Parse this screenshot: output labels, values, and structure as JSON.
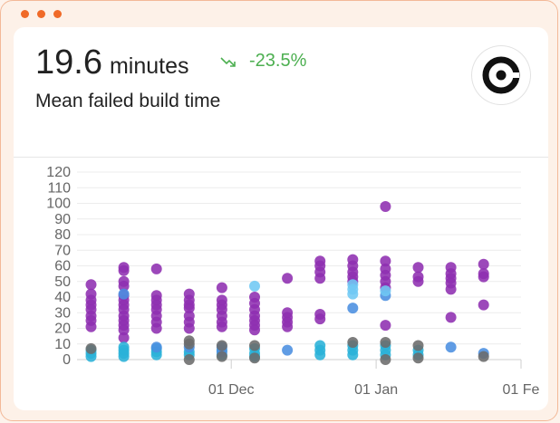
{
  "metric": {
    "value": "19.6",
    "unit": "minutes",
    "change": "-23.5%",
    "label": "Mean failed build time"
  },
  "icons": {
    "trend": "trend-down-icon",
    "logo": "circleci-logo"
  },
  "colors": {
    "accent": "#f06a28",
    "positive": "#4caf50",
    "purple": "#8e2fb0",
    "teal": "#2ab2d8",
    "blue": "#4a8ee0",
    "light_blue": "#6fc8f4",
    "gray": "#6b6b6b"
  },
  "chart_data": {
    "type": "scatter",
    "title": "",
    "xlabel": "",
    "ylabel": "",
    "y_ticks": [
      0,
      10,
      20,
      30,
      40,
      50,
      60,
      70,
      80,
      90,
      100,
      110,
      120
    ],
    "ylim": [
      0,
      120
    ],
    "x_ticks": [
      "01 Dec",
      "01 Jan",
      "01 Fe"
    ],
    "xlim": [
      "2023-10-29",
      "2024-02-01"
    ],
    "grid": true,
    "series": [
      {
        "color": "#8e2fb0",
        "points": [
          [
            "2023-11-01",
            48
          ],
          [
            "2023-11-01",
            42
          ],
          [
            "2023-11-01",
            38
          ],
          [
            "2023-11-01",
            35
          ],
          [
            "2023-11-01",
            32
          ],
          [
            "2023-11-01",
            28
          ],
          [
            "2023-11-01",
            25
          ],
          [
            "2023-11-01",
            21
          ],
          [
            "2023-11-08",
            59
          ],
          [
            "2023-11-08",
            57
          ],
          [
            "2023-11-08",
            50
          ],
          [
            "2023-11-08",
            47
          ],
          [
            "2023-11-08",
            41
          ],
          [
            "2023-11-08",
            38
          ],
          [
            "2023-11-08",
            35
          ],
          [
            "2023-11-08",
            32
          ],
          [
            "2023-11-08",
            28
          ],
          [
            "2023-11-08",
            25
          ],
          [
            "2023-11-08",
            22
          ],
          [
            "2023-11-08",
            19
          ],
          [
            "2023-11-08",
            14
          ],
          [
            "2023-11-15",
            58
          ],
          [
            "2023-11-15",
            41
          ],
          [
            "2023-11-15",
            38
          ],
          [
            "2023-11-15",
            35
          ],
          [
            "2023-11-15",
            32
          ],
          [
            "2023-11-15",
            28
          ],
          [
            "2023-11-15",
            24
          ],
          [
            "2023-11-15",
            20
          ],
          [
            "2023-11-22",
            42
          ],
          [
            "2023-11-22",
            38
          ],
          [
            "2023-11-22",
            35
          ],
          [
            "2023-11-22",
            33
          ],
          [
            "2023-11-22",
            28
          ],
          [
            "2023-11-22",
            24
          ],
          [
            "2023-11-22",
            20
          ],
          [
            "2023-11-29",
            46
          ],
          [
            "2023-11-29",
            38
          ],
          [
            "2023-11-29",
            35
          ],
          [
            "2023-11-29",
            32
          ],
          [
            "2023-11-29",
            28
          ],
          [
            "2023-11-29",
            24
          ],
          [
            "2023-11-29",
            21
          ],
          [
            "2023-12-06",
            40
          ],
          [
            "2023-12-06",
            36
          ],
          [
            "2023-12-06",
            32
          ],
          [
            "2023-12-06",
            28
          ],
          [
            "2023-12-06",
            25
          ],
          [
            "2023-12-06",
            22
          ],
          [
            "2023-12-06",
            19
          ],
          [
            "2023-12-13",
            52
          ],
          [
            "2023-12-13",
            30
          ],
          [
            "2023-12-13",
            27
          ],
          [
            "2023-12-13",
            24
          ],
          [
            "2023-12-13",
            21
          ],
          [
            "2023-12-20",
            63
          ],
          [
            "2023-12-20",
            60
          ],
          [
            "2023-12-20",
            56
          ],
          [
            "2023-12-20",
            52
          ],
          [
            "2023-12-20",
            29
          ],
          [
            "2023-12-20",
            26
          ],
          [
            "2023-12-27",
            64
          ],
          [
            "2023-12-27",
            60
          ],
          [
            "2023-12-27",
            56
          ],
          [
            "2023-12-27",
            53
          ],
          [
            "2023-12-27",
            50
          ],
          [
            "2024-01-03",
            98
          ],
          [
            "2024-01-03",
            63
          ],
          [
            "2024-01-03",
            58
          ],
          [
            "2024-01-03",
            54
          ],
          [
            "2024-01-03",
            50
          ],
          [
            "2024-01-03",
            46
          ],
          [
            "2024-01-03",
            22
          ],
          [
            "2024-01-10",
            59
          ],
          [
            "2024-01-10",
            53
          ],
          [
            "2024-01-10",
            50
          ],
          [
            "2024-01-17",
            59
          ],
          [
            "2024-01-17",
            55
          ],
          [
            "2024-01-17",
            52
          ],
          [
            "2024-01-17",
            49
          ],
          [
            "2024-01-17",
            45
          ],
          [
            "2024-01-17",
            27
          ],
          [
            "2024-01-24",
            61
          ],
          [
            "2024-01-24",
            55
          ],
          [
            "2024-01-24",
            53
          ],
          [
            "2024-01-24",
            35
          ]
        ]
      },
      {
        "color": "#2ab2d8",
        "points": [
          [
            "2023-11-01",
            6
          ],
          [
            "2023-11-01",
            4
          ],
          [
            "2023-11-01",
            2
          ],
          [
            "2023-11-08",
            8
          ],
          [
            "2023-11-08",
            6
          ],
          [
            "2023-11-08",
            4
          ],
          [
            "2023-11-08",
            2
          ],
          [
            "2023-11-15",
            7
          ],
          [
            "2023-11-15",
            5
          ],
          [
            "2023-11-15",
            3
          ],
          [
            "2023-11-22",
            5
          ],
          [
            "2023-11-22",
            3
          ],
          [
            "2023-11-29",
            6
          ],
          [
            "2023-11-29",
            3
          ],
          [
            "2023-12-06",
            7
          ],
          [
            "2023-12-06",
            4
          ],
          [
            "2023-12-06",
            2
          ],
          [
            "2023-12-20",
            9
          ],
          [
            "2023-12-20",
            6
          ],
          [
            "2023-12-20",
            3
          ],
          [
            "2023-12-27",
            9
          ],
          [
            "2023-12-27",
            6
          ],
          [
            "2023-12-27",
            3
          ],
          [
            "2024-01-03",
            9
          ],
          [
            "2024-01-03",
            6
          ],
          [
            "2024-01-03",
            3
          ],
          [
            "2024-01-10",
            6
          ],
          [
            "2024-01-10",
            3
          ]
        ]
      },
      {
        "color": "#4a8ee0",
        "points": [
          [
            "2023-11-08",
            42
          ],
          [
            "2023-11-15",
            8
          ],
          [
            "2023-11-22",
            8
          ],
          [
            "2023-11-29",
            8
          ],
          [
            "2023-11-29",
            5
          ],
          [
            "2023-12-13",
            6
          ],
          [
            "2023-12-27",
            33
          ],
          [
            "2024-01-03",
            41
          ],
          [
            "2024-01-17",
            8
          ],
          [
            "2024-01-24",
            4
          ]
        ]
      },
      {
        "color": "#6fc8f4",
        "points": [
          [
            "2023-12-06",
            47
          ],
          [
            "2023-12-27",
            48
          ],
          [
            "2023-12-27",
            45
          ],
          [
            "2023-12-27",
            42
          ],
          [
            "2024-01-03",
            44
          ]
        ]
      },
      {
        "color": "#6b6b6b",
        "points": [
          [
            "2023-11-01",
            7
          ],
          [
            "2023-11-22",
            12
          ],
          [
            "2023-11-22",
            10
          ],
          [
            "2023-11-22",
            0
          ],
          [
            "2023-11-29",
            9
          ],
          [
            "2023-11-29",
            2
          ],
          [
            "2023-12-06",
            9
          ],
          [
            "2023-12-06",
            1
          ],
          [
            "2023-12-27",
            11
          ],
          [
            "2024-01-03",
            11
          ],
          [
            "2024-01-03",
            0
          ],
          [
            "2024-01-10",
            9
          ],
          [
            "2024-01-10",
            1
          ],
          [
            "2024-01-24",
            2
          ]
        ]
      }
    ]
  }
}
